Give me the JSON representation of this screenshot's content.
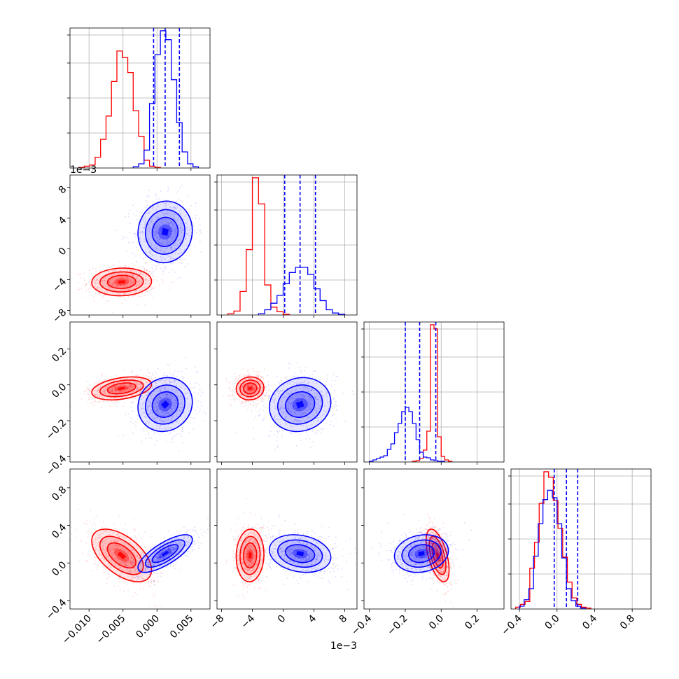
{
  "chart_data": {
    "type": "scatter",
    "subtype": "corner-plot",
    "colors": {
      "red": "#ff0000",
      "blue": "#0000ff",
      "grid": "#b0b0b0"
    },
    "grid": true,
    "series": [],
    "offset_labels": {
      "y_row1": "1e−3",
      "x_col1": "1e−3"
    },
    "parameters": [
      {
        "ticks": [
          -0.01,
          -0.005,
          0.0,
          0.005
        ],
        "tick_labels": [
          "−0.010",
          "−0.005",
          "0.000",
          "0.005"
        ],
        "range": [
          -0.0128,
          0.0078
        ]
      },
      {
        "ticks": [
          -8,
          -4,
          0,
          4,
          8
        ],
        "tick_labels": [
          "−8",
          "−4",
          "0",
          "4",
          "8"
        ],
        "range": [
          -8.6,
          9.6
        ]
      },
      {
        "ticks": [
          -0.4,
          -0.2,
          0.0,
          0.2
        ],
        "tick_labels": [
          "−0.4",
          "−0.2",
          "0.0",
          "0.2"
        ],
        "range": [
          -0.43,
          0.35
        ]
      },
      {
        "ticks": [
          -0.4,
          0.0,
          0.4,
          0.8
        ],
        "tick_labels": [
          "−0.4",
          "0.0",
          "0.4",
          "0.8"
        ],
        "range": [
          -0.49,
          1.0
        ]
      }
    ],
    "y_tick_labels": {
      "row1": [
        "−8",
        "−4",
        "0",
        "4",
        "8"
      ],
      "row2": [
        "−0.4",
        "−0.2",
        "0.0",
        "0.2"
      ],
      "row3": [
        "−0.4",
        "0.0",
        "0.4",
        "0.8"
      ]
    },
    "diagonal": [
      {
        "red": {
          "edges_start": -0.0115,
          "bin": 0.0008,
          "counts": [
            1,
            3,
            5,
            18,
            48,
            87,
            145,
            196,
            185,
            160,
            96,
            53,
            13,
            3,
            1
          ]
        },
        "blue": {
          "edges_start": -0.0035,
          "bin": 0.0008,
          "counts": [
            2,
            7,
            30,
            108,
            190,
            230,
            215,
            148,
            76,
            27,
            7,
            2
          ]
        },
        "blue_quantiles": [
          -0.0005,
          0.0012,
          0.0033
        ]
      },
      {
        "red": {
          "edges_start": -7.2,
          "bin": 0.8,
          "counts": [
            2,
            6,
            36,
            100,
            210,
            170,
            46,
            12,
            5,
            1
          ]
        },
        "blue": {
          "edges_start": -3.2,
          "bin": 0.8,
          "counts": [
            2,
            8,
            18,
            30,
            48,
            65,
            73,
            73,
            62,
            40,
            22,
            8,
            3,
            1
          ]
        },
        "blue_quantiles": [
          0.2,
          2.2,
          4.2
        ]
      },
      {
        "red": {
          "edges_start": -0.16,
          "bin": 0.02,
          "counts": [
            1,
            2,
            5,
            17,
            44,
            196,
            190,
            36,
            8,
            3,
            1
          ]
        },
        "blue": {
          "edges_start": -0.4,
          "bin": 0.02,
          "counts": [
            1,
            3,
            5,
            7,
            9,
            18,
            26,
            42,
            55,
            72,
            78,
            72,
            55,
            32,
            14,
            7,
            6,
            3,
            2,
            1,
            1
          ]
        },
        "blue_quantiles": [
          -0.2,
          -0.12,
          -0.03
        ]
      },
      {
        "red": {
          "edges_start": -0.44,
          "bin": 0.05,
          "counts": [
            2,
            5,
            8,
            44,
            72,
            114,
            148,
            142,
            117,
            87,
            56,
            29,
            12,
            5,
            2,
            1
          ]
        },
        "blue": {
          "edges_start": -0.4,
          "bin": 0.05,
          "counts": [
            3,
            10,
            22,
            57,
            92,
            118,
            128,
            120,
            92,
            55,
            22,
            9,
            3,
            1
          ]
        },
        "blue_quantiles": [
          -0.03,
          0.1,
          0.22
        ]
      }
    ],
    "clusters": {
      "red": {
        "mean": [
          -0.0052,
          -4.3,
          -0.02,
          0.08
        ],
        "sd": [
          0.0022,
          0.9,
          0.032,
          0.14
        ],
        "corr": [
          [
            1,
            0.05,
            0.35,
            -0.55
          ],
          [
            0.05,
            1,
            0.05,
            0.05
          ],
          [
            0.35,
            0.05,
            1,
            -0.55
          ],
          [
            -0.55,
            0.05,
            -0.55,
            1
          ]
        ]
      },
      "blue": {
        "mean": [
          0.0012,
          2.2,
          -0.11,
          0.1
        ],
        "sd": [
          0.002,
          2.0,
          0.075,
          0.1
        ],
        "corr": [
          [
            1,
            0.05,
            0.1,
            0.75
          ],
          [
            0.05,
            1,
            0.1,
            -0.2
          ],
          [
            0.1,
            0.1,
            1,
            0.15
          ],
          [
            0.75,
            -0.2,
            0.15,
            1
          ]
        ]
      }
    }
  }
}
